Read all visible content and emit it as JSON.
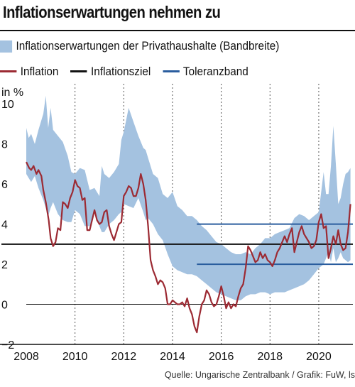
{
  "title": "Inflationserwartungen nehmen zu",
  "source": "Quelle: Ungarische Zentralbank / Grafik: FuW, ls",
  "colors": {
    "band": "#a4c2e0",
    "inflation": "#9c2a33",
    "target": "#111111",
    "tolerance": "#2a5d9e"
  },
  "chart_data": {
    "type": "line",
    "title": "Inflationserwartungen nehmen zu",
    "ylabel": "in %",
    "xlim": [
      2008,
      2021.4
    ],
    "ylim": [
      -2,
      11
    ],
    "x_ticks": [
      "2008",
      "2010",
      "2012",
      "2014",
      "2016",
      "2018",
      "2020"
    ],
    "y_ticks": [
      "10",
      "8",
      "6",
      "4",
      "2",
      "0",
      "−2"
    ],
    "grid": "vertical-dashed",
    "legend": [
      {
        "label": "Inflationserwartungen der Privathaushalte (Bandbreite)",
        "kind": "band"
      },
      {
        "label": "Inflation",
        "kind": "line",
        "color": "#9c2a33"
      },
      {
        "label": "Inflationsziel",
        "kind": "line",
        "color": "#111111"
      },
      {
        "label": "Toleranzband",
        "kind": "line",
        "color": "#2a5d9e"
      }
    ],
    "band": {
      "name": "Inflationserwartungen der Privathaushalte (Bandbreite)",
      "x": [
        2008.0,
        2008.1,
        2008.2,
        2008.35,
        2008.5,
        2008.7,
        2008.8,
        2008.9,
        2009.0,
        2009.1,
        2009.3,
        2009.5,
        2009.7,
        2009.85,
        2010.0,
        2010.2,
        2010.4,
        2010.6,
        2010.8,
        2011.0,
        2011.1,
        2011.2,
        2011.4,
        2011.6,
        2011.8,
        2011.9,
        2012.0,
        2012.2,
        2012.4,
        2012.6,
        2012.8,
        2012.9,
        2013.0,
        2013.2,
        2013.4,
        2013.6,
        2013.8,
        2014.0,
        2014.2,
        2014.4,
        2014.6,
        2014.8,
        2015.0,
        2015.2,
        2015.4,
        2015.6,
        2015.8,
        2016.0,
        2016.2,
        2016.4,
        2016.6,
        2016.8,
        2017.0,
        2017.2,
        2017.4,
        2017.6,
        2017.8,
        2018.0,
        2018.2,
        2018.4,
        2018.6,
        2018.8,
        2019.0,
        2019.2,
        2019.4,
        2019.6,
        2019.8,
        2020.0,
        2020.2,
        2020.3,
        2020.4,
        2020.5,
        2020.6,
        2020.7,
        2020.8,
        2020.9,
        2021.0,
        2021.1,
        2021.2,
        2021.3
      ],
      "upper": [
        8.8,
        8.3,
        8.5,
        8.0,
        8.7,
        9.5,
        10.4,
        8.8,
        9.8,
        8.7,
        8.4,
        8.1,
        7.4,
        6.6,
        6.5,
        6.8,
        6.7,
        5.7,
        5.8,
        5.4,
        6.9,
        6.5,
        6.3,
        6.6,
        7.0,
        8.2,
        8.6,
        9.8,
        9.1,
        8.4,
        7.8,
        7.7,
        7.3,
        6.5,
        6.3,
        5.5,
        5.3,
        5.6,
        4.9,
        4.7,
        4.4,
        4.4,
        4.2,
        3.9,
        3.7,
        3.4,
        3.1,
        3.0,
        2.8,
        2.6,
        2.5,
        2.5,
        2.6,
        2.5,
        2.8,
        3.0,
        3.3,
        3.3,
        3.5,
        3.6,
        3.7,
        3.8,
        4.3,
        4.5,
        4.4,
        4.2,
        4.4,
        4.6,
        6.6,
        5.5,
        5.5,
        6.9,
        8.9,
        7.0,
        5.0,
        5.3,
        6.0,
        6.5,
        6.6,
        6.8
      ],
      "lower": [
        6.5,
        6.3,
        6.1,
        6.4,
        5.8,
        5.2,
        4.8,
        4.4,
        4.8,
        5.1,
        4.5,
        4.2,
        4.1,
        4.1,
        4.7,
        4.5,
        3.9,
        3.9,
        4.6,
        3.9,
        3.6,
        3.6,
        4.0,
        4.2,
        4.5,
        4.6,
        5.0,
        4.9,
        4.8,
        5.3,
        4.6,
        4.2,
        4.3,
        4.0,
        3.5,
        3.2,
        2.5,
        1.9,
        1.7,
        1.6,
        1.5,
        1.5,
        1.4,
        1.2,
        1.0,
        0.8,
        0.6,
        0.5,
        0.4,
        0.3,
        0.2,
        0.2,
        0.4,
        0.5,
        0.5,
        0.6,
        0.6,
        0.5,
        0.6,
        0.6,
        0.6,
        0.7,
        0.8,
        0.9,
        1.0,
        1.2,
        1.5,
        1.8,
        2.0,
        2.3,
        2.6,
        2.1,
        2.8,
        2.1,
        2.3,
        2.6,
        2.3,
        2.2,
        2.1,
        2.2
      ]
    },
    "series": [
      {
        "name": "Inflation",
        "x": [
          2008.0,
          2008.12,
          2008.2,
          2008.3,
          2008.42,
          2008.5,
          2008.62,
          2008.7,
          2008.8,
          2008.92,
          2009.0,
          2009.1,
          2009.2,
          2009.3,
          2009.4,
          2009.5,
          2009.6,
          2009.7,
          2009.8,
          2009.9,
          2010.0,
          2010.1,
          2010.2,
          2010.3,
          2010.4,
          2010.5,
          2010.6,
          2010.7,
          2010.8,
          2010.9,
          2011.0,
          2011.1,
          2011.2,
          2011.3,
          2011.4,
          2011.5,
          2011.6,
          2011.7,
          2011.8,
          2011.9,
          2012.0,
          2012.1,
          2012.2,
          2012.3,
          2012.4,
          2012.5,
          2012.6,
          2012.7,
          2012.8,
          2012.9,
          2013.0,
          2013.1,
          2013.2,
          2013.3,
          2013.4,
          2013.5,
          2013.6,
          2013.7,
          2013.8,
          2013.9,
          2014.0,
          2014.1,
          2014.2,
          2014.3,
          2014.4,
          2014.5,
          2014.6,
          2014.7,
          2014.8,
          2014.9,
          2015.0,
          2015.1,
          2015.2,
          2015.3,
          2015.4,
          2015.5,
          2015.6,
          2015.7,
          2015.8,
          2015.9,
          2016.0,
          2016.1,
          2016.2,
          2016.3,
          2016.4,
          2016.5,
          2016.6,
          2016.7,
          2016.8,
          2016.9,
          2017.0,
          2017.1,
          2017.2,
          2017.3,
          2017.4,
          2017.5,
          2017.6,
          2017.7,
          2017.8,
          2017.9,
          2018.0,
          2018.1,
          2018.2,
          2018.3,
          2018.4,
          2018.5,
          2018.6,
          2018.7,
          2018.8,
          2018.9,
          2019.0,
          2019.1,
          2019.2,
          2019.3,
          2019.4,
          2019.5,
          2019.6,
          2019.7,
          2019.8,
          2019.9,
          2020.0,
          2020.1,
          2020.2,
          2020.3,
          2020.4,
          2020.5,
          2020.6,
          2020.7,
          2020.8,
          2020.9,
          2021.0,
          2021.1,
          2021.2,
          2021.3
        ],
        "y": [
          7.1,
          6.8,
          6.7,
          6.9,
          6.5,
          6.7,
          6.4,
          5.7,
          5.1,
          4.2,
          3.3,
          2.9,
          3.1,
          3.8,
          3.7,
          5.1,
          5.0,
          4.8,
          5.3,
          5.6,
          6.2,
          5.9,
          5.8,
          5.2,
          5.3,
          3.7,
          3.7,
          4.2,
          4.7,
          4.2,
          4.0,
          4.1,
          4.6,
          4.7,
          3.9,
          3.5,
          3.2,
          3.6,
          4.0,
          4.1,
          5.4,
          5.6,
          5.9,
          5.8,
          5.4,
          5.4,
          5.8,
          6.5,
          6.0,
          5.2,
          3.9,
          2.2,
          1.7,
          1.4,
          1.0,
          1.2,
          1.1,
          0.8,
          0.0,
          0.0,
          0.2,
          0.1,
          0.0,
          0.0,
          0.1,
          -0.1,
          0.3,
          -0.2,
          -0.5,
          -1.1,
          -1.4,
          -0.6,
          0.0,
          0.2,
          0.7,
          0.5,
          0.1,
          -0.1,
          0.0,
          0.4,
          0.9,
          0.4,
          -0.2,
          0.1,
          -0.2,
          0.0,
          -0.1,
          0.4,
          0.8,
          1.0,
          1.8,
          2.9,
          2.7,
          2.4,
          2.1,
          2.2,
          2.6,
          2.3,
          2.5,
          2.2,
          2.1,
          1.9,
          2.2,
          2.6,
          2.8,
          3.1,
          3.4,
          3.1,
          3.5,
          3.8,
          2.6,
          3.1,
          3.6,
          3.9,
          3.5,
          3.3,
          3.1,
          2.8,
          2.9,
          3.2,
          4.1,
          4.5,
          3.8,
          3.9,
          2.3,
          2.8,
          3.4,
          3.0,
          3.7,
          3.0,
          2.7,
          2.8,
          3.6,
          5.0
        ]
      },
      {
        "name": "Inflationsziel",
        "x": [
          2008.0,
          2021.4
        ],
        "y": [
          3,
          3
        ]
      },
      {
        "name": "Toleranzband",
        "x": [
          2015.0,
          2021.4
        ],
        "y_upper": [
          4,
          4
        ],
        "y_lower": [
          2,
          2
        ]
      }
    ]
  }
}
